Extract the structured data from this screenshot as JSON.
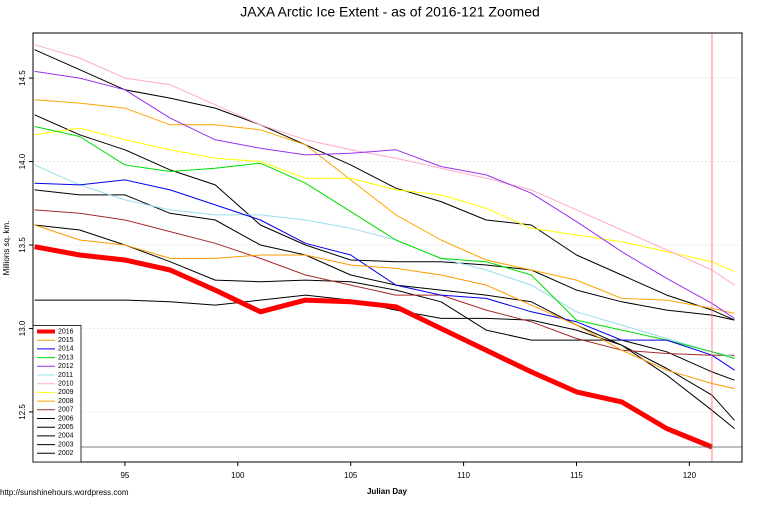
{
  "chart_data": {
    "type": "line",
    "title": "JAXA Arctic Ice Extent - as of 2016-121 Zoomed",
    "xlabel": "Julian Day",
    "ylabel": "Millions sq. km.",
    "source": "http://sunshinehours.wordpress.com",
    "x": [
      91,
      93,
      95,
      97,
      99,
      101,
      103,
      105,
      107,
      109,
      111,
      113,
      115,
      117,
      119,
      121,
      122
    ],
    "xlim": [
      90.93,
      122.33
    ],
    "ylim": [
      12.2,
      14.77
    ],
    "xticks": [
      95,
      100,
      105,
      110,
      115,
      120
    ],
    "yticks": [
      12.5,
      {
        "value": 13,
        "label": "13.0"
      },
      13.5,
      {
        "value": 14,
        "label": "14.0"
      },
      14.5
    ],
    "legend": "bottom-left",
    "series": [
      {
        "name": "2016",
        "color": "#ff0000",
        "values": [
          13.49,
          13.44,
          13.41,
          13.35,
          13.23,
          13.1,
          13.17,
          13.16,
          13.13,
          13.0,
          12.87,
          12.74,
          12.62,
          12.56,
          12.4,
          12.29,
          null
        ]
      },
      {
        "name": "2015",
        "color": "#ff9900",
        "values": [
          13.62,
          13.53,
          13.5,
          13.42,
          13.42,
          13.44,
          13.44,
          13.38,
          13.36,
          13.32,
          13.26,
          13.14,
          13.02,
          12.87,
          12.75,
          12.67,
          12.64
        ]
      },
      {
        "name": "2014",
        "color": "#0000ee",
        "values": [
          13.87,
          13.86,
          13.89,
          13.83,
          13.74,
          13.65,
          13.51,
          13.44,
          13.26,
          13.2,
          13.18,
          13.1,
          13.04,
          12.93,
          12.93,
          12.84,
          12.75
        ]
      },
      {
        "name": "2013",
        "color": "#00dd00",
        "values": [
          14.21,
          14.15,
          13.98,
          13.94,
          13.96,
          13.99,
          13.87,
          13.7,
          13.53,
          13.42,
          13.4,
          13.32,
          13.05,
          12.99,
          12.93,
          12.86,
          12.82
        ]
      },
      {
        "name": "2012",
        "color": "#9933ee",
        "values": [
          14.54,
          14.5,
          14.43,
          14.26,
          14.13,
          14.08,
          14.04,
          14.05,
          14.07,
          13.97,
          13.92,
          13.81,
          13.64,
          13.46,
          13.3,
          13.15,
          13.06
        ]
      },
      {
        "name": "2011",
        "color": "#99ddee",
        "values": [
          13.98,
          13.86,
          13.77,
          13.71,
          13.68,
          13.68,
          13.65,
          13.6,
          13.53,
          13.42,
          13.35,
          13.26,
          13.1,
          13.02,
          12.94,
          12.86,
          12.83
        ]
      },
      {
        "name": "2010",
        "color": "#ffaacc",
        "values": [
          14.7,
          14.62,
          14.5,
          14.46,
          14.34,
          14.22,
          14.13,
          14.07,
          14.02,
          13.96,
          13.9,
          13.83,
          13.71,
          13.59,
          13.47,
          13.35,
          13.26
        ]
      },
      {
        "name": "2009",
        "color": "#ffff00",
        "values": [
          14.16,
          14.2,
          14.13,
          14.07,
          14.02,
          14.0,
          13.9,
          13.9,
          13.83,
          13.8,
          13.72,
          13.6,
          13.56,
          13.52,
          13.46,
          13.4,
          13.34
        ]
      },
      {
        "name": "2008",
        "color": "#ffa500",
        "values": [
          14.37,
          14.35,
          14.32,
          14.22,
          14.22,
          14.19,
          14.1,
          13.89,
          13.68,
          13.53,
          13.41,
          13.35,
          13.29,
          13.18,
          13.17,
          13.12,
          13.09
        ]
      },
      {
        "name": "2007",
        "color": "#a52a2a",
        "values": [
          13.71,
          13.69,
          13.65,
          13.58,
          13.51,
          13.42,
          13.32,
          13.26,
          13.2,
          13.2,
          13.11,
          13.04,
          12.94,
          12.87,
          12.85,
          12.84,
          12.84
        ]
      },
      {
        "name": "2006",
        "color": "#000000",
        "values": [
          14.67,
          14.55,
          14.43,
          14.38,
          14.32,
          14.22,
          14.1,
          13.98,
          13.84,
          13.76,
          13.65,
          13.62,
          13.44,
          13.32,
          13.2,
          13.11,
          13.05
        ]
      },
      {
        "name": "2005",
        "color": "#000000",
        "values": [
          14.28,
          14.16,
          14.07,
          13.95,
          13.86,
          13.62,
          13.5,
          13.41,
          13.4,
          13.4,
          13.38,
          13.35,
          13.23,
          13.16,
          13.11,
          13.08,
          13.05
        ]
      },
      {
        "name": "2004",
        "color": "#000000",
        "values": [
          13.83,
          13.8,
          13.8,
          13.69,
          13.65,
          13.5,
          13.44,
          13.32,
          13.26,
          13.23,
          13.2,
          13.16,
          13.02,
          12.9,
          12.76,
          12.6,
          12.45
        ]
      },
      {
        "name": "2003",
        "color": "#000000",
        "values": [
          13.62,
          13.59,
          13.5,
          13.4,
          13.29,
          13.28,
          13.29,
          13.28,
          13.23,
          13.16,
          12.99,
          12.93,
          12.93,
          12.93,
          12.86,
          12.74,
          12.69
        ]
      },
      {
        "name": "2002",
        "color": "#000000",
        "values": [
          13.17,
          13.17,
          13.17,
          13.16,
          13.14,
          13.17,
          13.2,
          13.17,
          13.11,
          13.06,
          13.06,
          13.05,
          12.99,
          12.9,
          12.72,
          12.51,
          12.4
        ]
      }
    ]
  }
}
